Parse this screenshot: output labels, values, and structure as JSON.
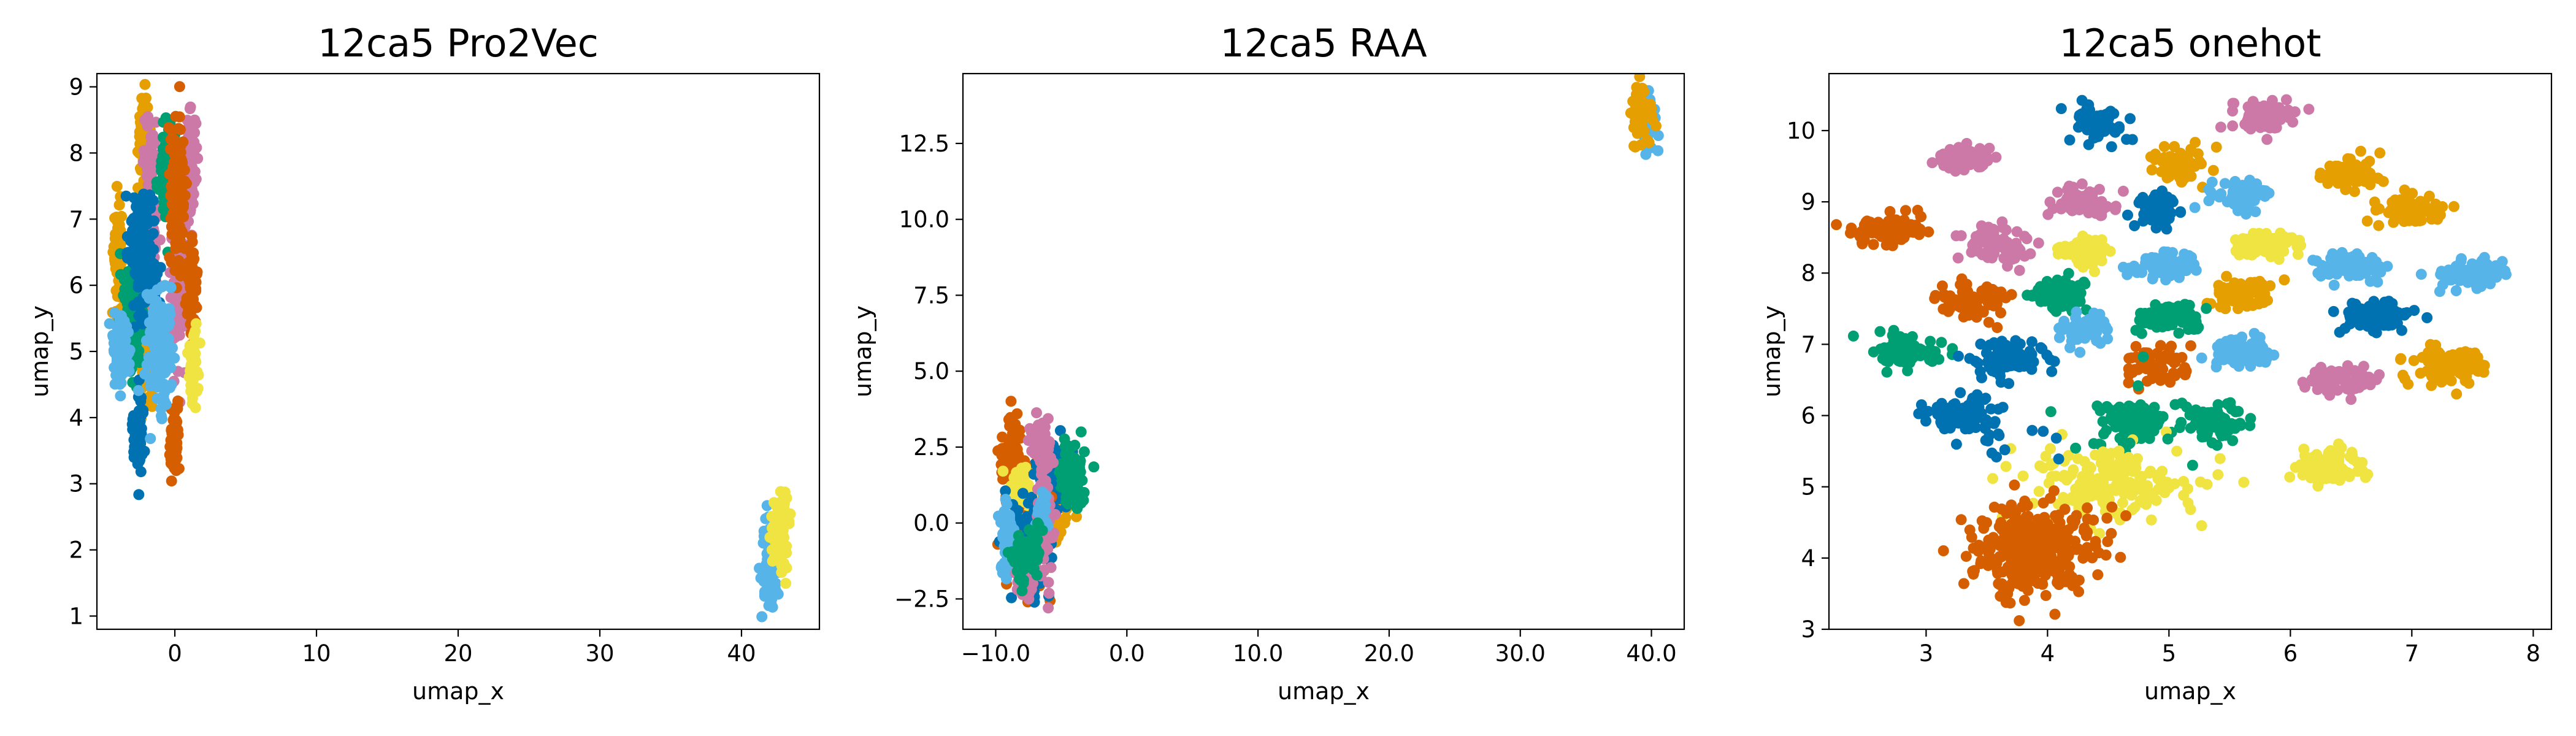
{
  "colors": {
    "blue": "#0072B2",
    "orange": "#E69F00",
    "vermillion": "#D55E00",
    "green": "#009E73",
    "pink": "#CC79A7",
    "skyblue": "#56B4E9",
    "yellow": "#F0E442"
  },
  "chart_data": [
    {
      "type": "scatter",
      "title": "12ca5 Pro2Vec",
      "xlabel": "umap_x",
      "ylabel": "umap_y",
      "xlim": [
        -5.5,
        45.5
      ],
      "ylim": [
        0.8,
        9.2
      ],
      "xticks": [
        0,
        10,
        20,
        30,
        40
      ],
      "yticks": [
        1,
        2,
        3,
        4,
        5,
        6,
        7,
        8,
        9
      ],
      "grid": false,
      "clusters": [
        {
          "color": "orange",
          "cx": -2.2,
          "cy": 8.3,
          "sx": 0.2,
          "sy": 0.3,
          "n": 90
        },
        {
          "color": "orange",
          "cx": -4.0,
          "cy": 6.4,
          "sx": 0.15,
          "sy": 0.4,
          "n": 90
        },
        {
          "color": "orange",
          "cx": -2.0,
          "cy": 4.8,
          "sx": 0.3,
          "sy": 0.4,
          "n": 70
        },
        {
          "color": "pink",
          "cx": -1.7,
          "cy": 7.0,
          "sx": 0.3,
          "sy": 0.7,
          "n": 130
        },
        {
          "color": "pink",
          "cx": 1.1,
          "cy": 7.8,
          "sx": 0.2,
          "sy": 0.4,
          "n": 80
        },
        {
          "color": "pink",
          "cx": 0.2,
          "cy": 6.0,
          "sx": 0.3,
          "sy": 0.6,
          "n": 110
        },
        {
          "color": "green",
          "cx": -0.5,
          "cy": 7.7,
          "sx": 0.3,
          "sy": 0.4,
          "n": 100
        },
        {
          "color": "green",
          "cx": -2.8,
          "cy": 5.7,
          "sx": 0.35,
          "sy": 0.5,
          "n": 130
        },
        {
          "color": "vermillion",
          "cx": 0.2,
          "cy": 7.4,
          "sx": 0.25,
          "sy": 0.6,
          "n": 130
        },
        {
          "color": "vermillion",
          "cx": 1.2,
          "cy": 6.0,
          "sx": 0.2,
          "sy": 0.3,
          "n": 60
        },
        {
          "color": "vermillion",
          "cx": 0.0,
          "cy": 3.6,
          "sx": 0.2,
          "sy": 0.25,
          "n": 60
        },
        {
          "color": "blue",
          "cx": -2.3,
          "cy": 6.5,
          "sx": 0.5,
          "sy": 0.5,
          "n": 140
        },
        {
          "color": "blue",
          "cx": -2.6,
          "cy": 3.8,
          "sx": 0.2,
          "sy": 0.3,
          "n": 80
        },
        {
          "color": "skyblue",
          "cx": -3.8,
          "cy": 5.0,
          "sx": 0.3,
          "sy": 0.25,
          "n": 100
        },
        {
          "color": "skyblue",
          "cx": -1.0,
          "cy": 5.0,
          "sx": 0.5,
          "sy": 0.5,
          "n": 150
        },
        {
          "color": "yellow",
          "cx": 1.3,
          "cy": 4.7,
          "sx": 0.15,
          "sy": 0.3,
          "n": 50
        },
        {
          "color": "skyblue",
          "cx": 42.0,
          "cy": 1.8,
          "sx": 0.3,
          "sy": 0.3,
          "n": 90
        },
        {
          "color": "yellow",
          "cx": 42.7,
          "cy": 2.3,
          "sx": 0.3,
          "sy": 0.3,
          "n": 90
        }
      ]
    },
    {
      "type": "scatter",
      "title": "12ca5 RAA",
      "xlabel": "umap_x",
      "ylabel": "umap_y",
      "xlim": [
        -12.5,
        42.5
      ],
      "ylim": [
        -3.5,
        14.8
      ],
      "xticks": [
        -10,
        0,
        10,
        20,
        30,
        40
      ],
      "yticks": [
        -2.5,
        0.0,
        2.5,
        5.0,
        7.5,
        10.0,
        12.5
      ],
      "tickformat": "1dp",
      "grid": false,
      "clusters": [
        {
          "color": "orange",
          "cx": -5.5,
          "cy": 0.8,
          "sx": 0.6,
          "sy": 0.8,
          "n": 80
        },
        {
          "color": "blue",
          "cx": -5.3,
          "cy": 1.8,
          "sx": 0.7,
          "sy": 0.5,
          "n": 110
        },
        {
          "color": "green",
          "cx": -4.2,
          "cy": 1.5,
          "sx": 0.5,
          "sy": 0.6,
          "n": 70
        },
        {
          "color": "vermillion",
          "cx": -8.6,
          "cy": 1.8,
          "sx": 0.5,
          "sy": 0.8,
          "n": 100
        },
        {
          "color": "vermillion",
          "cx": -7.6,
          "cy": -0.3,
          "sx": 0.8,
          "sy": 0.8,
          "n": 90
        },
        {
          "color": "yellow",
          "cx": -8.2,
          "cy": 1.0,
          "sx": 0.5,
          "sy": 0.4,
          "n": 60
        },
        {
          "color": "blue",
          "cx": -7.0,
          "cy": -0.5,
          "sx": 0.8,
          "sy": 0.9,
          "n": 110
        },
        {
          "color": "pink",
          "cx": -6.6,
          "cy": 2.7,
          "sx": 0.4,
          "sy": 0.4,
          "n": 70
        },
        {
          "color": "pink",
          "cx": -6.3,
          "cy": 0.0,
          "sx": 0.3,
          "sy": 1.0,
          "n": 80
        },
        {
          "color": "pink",
          "cx": -7.8,
          "cy": -2.0,
          "sx": 0.3,
          "sy": 0.3,
          "n": 50
        },
        {
          "color": "skyblue",
          "cx": -9.2,
          "cy": -0.5,
          "sx": 0.3,
          "sy": 0.6,
          "n": 60
        },
        {
          "color": "skyblue",
          "cx": -6.5,
          "cy": 0.3,
          "sx": 0.2,
          "sy": 0.4,
          "n": 30
        },
        {
          "color": "green",
          "cx": -7.5,
          "cy": -1.0,
          "sx": 0.6,
          "sy": 0.4,
          "n": 90
        },
        {
          "color": "skyblue",
          "cx": 39.7,
          "cy": 13.2,
          "sx": 0.4,
          "sy": 0.4,
          "n": 60
        },
        {
          "color": "orange",
          "cx": 39.2,
          "cy": 13.5,
          "sx": 0.4,
          "sy": 0.4,
          "n": 70
        }
      ]
    },
    {
      "type": "scatter",
      "title": "12ca5 onehot",
      "xlabel": "umap_x",
      "ylabel": "umap_y",
      "xlim": [
        2.2,
        8.15
      ],
      "ylim": [
        3.0,
        10.8
      ],
      "xticks": [
        3,
        4,
        5,
        6,
        7,
        8
      ],
      "yticks": [
        3,
        4,
        5,
        6,
        7,
        8,
        9,
        10
      ],
      "grid": false,
      "clusters": [
        {
          "color": "blue",
          "cx": 4.4,
          "cy": 10.1,
          "sx": 0.1,
          "sy": 0.12,
          "n": 90
        },
        {
          "color": "pink",
          "cx": 5.8,
          "cy": 10.2,
          "sx": 0.12,
          "sy": 0.1,
          "n": 80
        },
        {
          "color": "pink",
          "cx": 3.3,
          "cy": 9.6,
          "sx": 0.12,
          "sy": 0.1,
          "n": 70
        },
        {
          "color": "orange",
          "cx": 5.1,
          "cy": 9.5,
          "sx": 0.1,
          "sy": 0.12,
          "n": 70
        },
        {
          "color": "orange",
          "cx": 6.5,
          "cy": 9.4,
          "sx": 0.12,
          "sy": 0.12,
          "n": 70
        },
        {
          "color": "pink",
          "cx": 4.3,
          "cy": 9.0,
          "sx": 0.12,
          "sy": 0.1,
          "n": 70
        },
        {
          "color": "skyblue",
          "cx": 5.6,
          "cy": 9.1,
          "sx": 0.12,
          "sy": 0.1,
          "n": 70
        },
        {
          "color": "blue",
          "cx": 4.9,
          "cy": 8.9,
          "sx": 0.1,
          "sy": 0.1,
          "n": 60
        },
        {
          "color": "orange",
          "cx": 7.0,
          "cy": 8.9,
          "sx": 0.15,
          "sy": 0.1,
          "n": 80
        },
        {
          "color": "vermillion",
          "cx": 2.7,
          "cy": 8.6,
          "sx": 0.15,
          "sy": 0.1,
          "n": 90
        },
        {
          "color": "pink",
          "cx": 3.6,
          "cy": 8.4,
          "sx": 0.12,
          "sy": 0.12,
          "n": 80
        },
        {
          "color": "yellow",
          "cx": 4.3,
          "cy": 8.3,
          "sx": 0.1,
          "sy": 0.1,
          "n": 60
        },
        {
          "color": "yellow",
          "cx": 5.8,
          "cy": 8.4,
          "sx": 0.15,
          "sy": 0.1,
          "n": 80
        },
        {
          "color": "skyblue",
          "cx": 5.0,
          "cy": 8.1,
          "sx": 0.13,
          "sy": 0.1,
          "n": 80
        },
        {
          "color": "skyblue",
          "cx": 6.5,
          "cy": 8.1,
          "sx": 0.15,
          "sy": 0.1,
          "n": 90
        },
        {
          "color": "skyblue",
          "cx": 7.5,
          "cy": 8.0,
          "sx": 0.15,
          "sy": 0.1,
          "n": 90
        },
        {
          "color": "vermillion",
          "cx": 3.4,
          "cy": 7.6,
          "sx": 0.15,
          "sy": 0.1,
          "n": 80
        },
        {
          "color": "green",
          "cx": 4.1,
          "cy": 7.7,
          "sx": 0.12,
          "sy": 0.12,
          "n": 70
        },
        {
          "color": "orange",
          "cx": 5.6,
          "cy": 7.7,
          "sx": 0.13,
          "sy": 0.1,
          "n": 70
        },
        {
          "color": "green",
          "cx": 5.0,
          "cy": 7.4,
          "sx": 0.13,
          "sy": 0.1,
          "n": 80
        },
        {
          "color": "blue",
          "cx": 6.7,
          "cy": 7.4,
          "sx": 0.15,
          "sy": 0.1,
          "n": 90
        },
        {
          "color": "skyblue",
          "cx": 4.3,
          "cy": 7.2,
          "sx": 0.12,
          "sy": 0.12,
          "n": 70
        },
        {
          "color": "green",
          "cx": 2.8,
          "cy": 6.9,
          "sx": 0.15,
          "sy": 0.12,
          "n": 90
        },
        {
          "color": "blue",
          "cx": 3.7,
          "cy": 6.8,
          "sx": 0.15,
          "sy": 0.12,
          "n": 90
        },
        {
          "color": "skyblue",
          "cx": 5.6,
          "cy": 6.9,
          "sx": 0.13,
          "sy": 0.1,
          "n": 80
        },
        {
          "color": "orange",
          "cx": 7.3,
          "cy": 6.7,
          "sx": 0.15,
          "sy": 0.12,
          "n": 90
        },
        {
          "color": "vermillion",
          "cx": 4.9,
          "cy": 6.7,
          "sx": 0.13,
          "sy": 0.12,
          "n": 70
        },
        {
          "color": "pink",
          "cx": 6.4,
          "cy": 6.5,
          "sx": 0.13,
          "sy": 0.1,
          "n": 70
        },
        {
          "color": "blue",
          "cx": 3.3,
          "cy": 6.0,
          "sx": 0.15,
          "sy": 0.12,
          "n": 90
        },
        {
          "color": "green",
          "cx": 4.7,
          "cy": 5.9,
          "sx": 0.13,
          "sy": 0.14,
          "n": 90
        },
        {
          "color": "green",
          "cx": 5.4,
          "cy": 5.9,
          "sx": 0.12,
          "sy": 0.13,
          "n": 80
        },
        {
          "color": "yellow",
          "cx": 6.3,
          "cy": 5.3,
          "sx": 0.13,
          "sy": 0.13,
          "n": 90
        },
        {
          "color": "yellow",
          "cx": 4.5,
          "cy": 5.0,
          "sx": 0.35,
          "sy": 0.25,
          "n": 200
        },
        {
          "color": "vermillion",
          "cx": 3.9,
          "cy": 4.1,
          "sx": 0.25,
          "sy": 0.3,
          "n": 320
        },
        {
          "color": "green",
          "cx": 4.4,
          "cy": 5.8,
          "sx": 0.3,
          "sy": 0.3,
          "n": 12
        },
        {
          "color": "blue",
          "cx": 3.7,
          "cy": 5.6,
          "sx": 0.25,
          "sy": 0.2,
          "n": 12
        }
      ]
    }
  ]
}
